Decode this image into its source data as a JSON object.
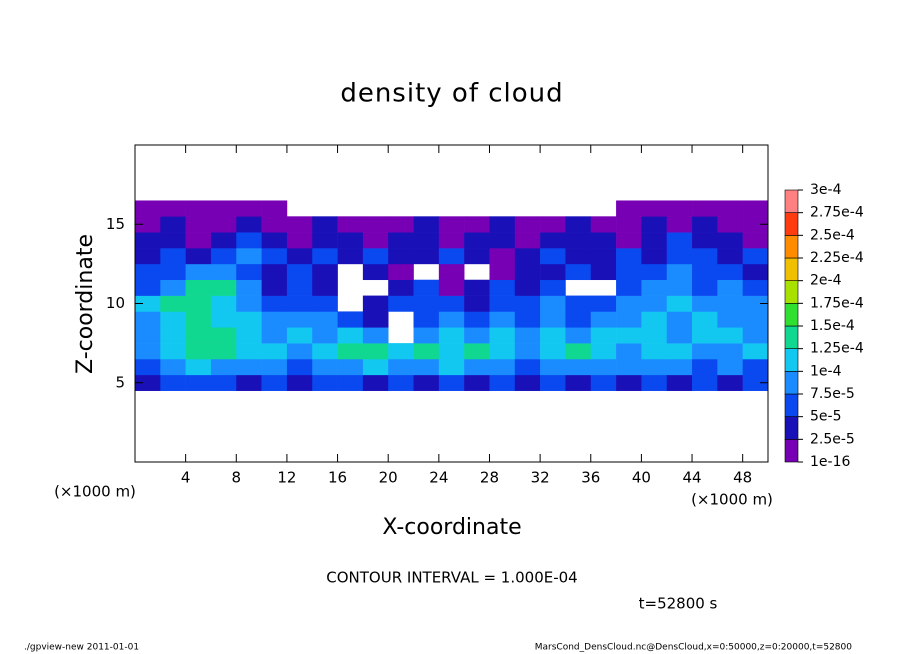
{
  "chart_data": {
    "type": "heatmap",
    "title": "density of cloud",
    "xlabel": "X-coordinate",
    "ylabel": "Z-coordinate",
    "x_unit": "(×1000 m)",
    "contour_note": "CONTOUR INTERVAL = 1.000E-04",
    "time_label": "t=52800 s",
    "footer_left": "./gpview-new  2011-01-01",
    "footer_right": "MarsCond_DensCloud.nc@DensCloud,x=0:50000,z=0:20000,t=52800",
    "xlim": [
      0,
      50
    ],
    "ylim": [
      0,
      20
    ],
    "xticks": [
      4,
      8,
      12,
      16,
      20,
      24,
      28,
      32,
      36,
      40,
      44,
      48
    ],
    "yticks": [
      5,
      10,
      15
    ],
    "levels": [
      {
        "value": 1e-16,
        "label": "1e-16"
      },
      {
        "value": 2.5e-05,
        "label": "2.5e-5"
      },
      {
        "value": 5e-05,
        "label": "5e-5"
      },
      {
        "value": 7.5e-05,
        "label": "7.5e-5"
      },
      {
        "value": 0.0001,
        "label": "1e-4"
      },
      {
        "value": 0.000125,
        "label": "1.25e-4"
      },
      {
        "value": 0.00015,
        "label": "1.5e-4"
      },
      {
        "value": 0.000175,
        "label": "1.75e-4"
      },
      {
        "value": 0.0002,
        "label": "2e-4"
      },
      {
        "value": 0.000225,
        "label": "2.25e-4"
      },
      {
        "value": 0.00025,
        "label": "2.5e-4"
      },
      {
        "value": 0.000275,
        "label": "2.75e-4"
      },
      {
        "value": 0.0003,
        "label": "3e-4"
      }
    ],
    "colors": [
      "#7800b4",
      "#1a10b8",
      "#0a48f0",
      "#1a8cff",
      "#12c8f0",
      "#10d890",
      "#30e030",
      "#a8e000",
      "#f0c000",
      "#ff8c00",
      "#ff3c10",
      "#ff8080"
    ],
    "x": [
      1,
      3,
      5,
      7,
      9,
      11,
      13,
      15,
      17,
      19,
      21,
      23,
      25,
      27,
      29,
      31,
      33,
      35,
      37,
      39,
      41,
      43,
      45,
      47,
      49
    ],
    "y": [
      5,
      6,
      7,
      8,
      9,
      10,
      11,
      12,
      13,
      14,
      15,
      16
    ],
    "z": [
      [
        3e-05,
        6e-05,
        6e-05,
        6e-05,
        3e-05,
        6e-05,
        3e-05,
        6e-05,
        6e-05,
        3e-05,
        6e-05,
        3e-05,
        6e-05,
        3e-05,
        6e-05,
        3e-05,
        6e-05,
        3e-05,
        6e-05,
        3e-05,
        6e-05,
        3e-05,
        6e-05,
        3e-05,
        6e-05
      ],
      [
        6e-05,
        9e-05,
        0.00011,
        9e-05,
        9e-05,
        9e-05,
        6e-05,
        9e-05,
        9e-05,
        0.00011,
        9e-05,
        9e-05,
        0.00011,
        9e-05,
        9e-05,
        6e-05,
        9e-05,
        9e-05,
        9e-05,
        9e-05,
        9e-05,
        9e-05,
        6e-05,
        9e-05,
        6e-05
      ],
      [
        9e-05,
        0.00011,
        0.00013,
        0.00013,
        0.00011,
        0.00011,
        9e-05,
        0.00011,
        0.00013,
        0.00013,
        0.00011,
        0.00013,
        0.00011,
        0.00013,
        0.00011,
        9e-05,
        0.00011,
        0.00013,
        0.00011,
        9e-05,
        0.00011,
        0.00011,
        9e-05,
        9e-05,
        0.00011
      ],
      [
        9e-05,
        0.00011,
        0.00013,
        0.00013,
        0.00011,
        9e-05,
        0.00011,
        9e-05,
        0.00011,
        9e-05,
        null,
        9e-05,
        0.00011,
        9e-05,
        0.00011,
        9e-05,
        0.00011,
        9e-05,
        0.00011,
        0.00011,
        0.00011,
        9e-05,
        0.00011,
        0.00011,
        9e-05
      ],
      [
        9e-05,
        0.00011,
        0.00013,
        0.00011,
        0.00011,
        9e-05,
        9e-05,
        9e-05,
        6e-05,
        3e-05,
        null,
        6e-05,
        9e-05,
        6e-05,
        9e-05,
        6e-05,
        9e-05,
        6e-05,
        9e-05,
        9e-05,
        0.00011,
        9e-05,
        0.00011,
        9e-05,
        9e-05
      ],
      [
        0.00011,
        0.00013,
        0.00013,
        0.00011,
        9e-05,
        6e-05,
        6e-05,
        6e-05,
        null,
        3e-05,
        6e-05,
        6e-05,
        6e-05,
        3e-05,
        6e-05,
        6e-05,
        9e-05,
        6e-05,
        6e-05,
        9e-05,
        9e-05,
        0.00011,
        9e-05,
        9e-05,
        9e-05
      ],
      [
        6e-05,
        9e-05,
        0.00013,
        0.00013,
        9e-05,
        3e-05,
        6e-05,
        3e-05,
        null,
        null,
        3e-05,
        6e-05,
        1e-05,
        3e-05,
        6e-05,
        3e-05,
        6e-05,
        null,
        null,
        6e-05,
        9e-05,
        9e-05,
        6e-05,
        9e-05,
        6e-05
      ],
      [
        6e-05,
        6e-05,
        9e-05,
        9e-05,
        6e-05,
        3e-05,
        6e-05,
        3e-05,
        null,
        3e-05,
        1e-05,
        null,
        1e-05,
        null,
        1e-05,
        3e-05,
        3e-05,
        6e-05,
        3e-05,
        6e-05,
        6e-05,
        9e-05,
        6e-05,
        6e-05,
        3e-05
      ],
      [
        3e-05,
        6e-05,
        3e-05,
        6e-05,
        9e-05,
        6e-05,
        3e-05,
        6e-05,
        3e-05,
        6e-05,
        3e-05,
        3e-05,
        6e-05,
        3e-05,
        1e-05,
        3e-05,
        6e-05,
        3e-05,
        3e-05,
        6e-05,
        3e-05,
        6e-05,
        6e-05,
        3e-05,
        6e-05
      ],
      [
        3e-05,
        3e-05,
        1e-05,
        3e-05,
        6e-05,
        3e-05,
        1e-05,
        3e-05,
        3e-05,
        1e-05,
        3e-05,
        3e-05,
        1e-05,
        3e-05,
        3e-05,
        1e-05,
        3e-05,
        3e-05,
        3e-05,
        1e-05,
        3e-05,
        6e-05,
        3e-05,
        3e-05,
        1e-05
      ],
      [
        1e-05,
        3e-05,
        1e-05,
        1e-05,
        3e-05,
        1e-05,
        1e-05,
        3e-05,
        1e-05,
        1e-05,
        1e-05,
        3e-05,
        1e-05,
        1e-05,
        3e-05,
        1e-05,
        1e-05,
        3e-05,
        1e-05,
        1e-05,
        3e-05,
        1e-05,
        3e-05,
        1e-05,
        1e-05
      ],
      [
        1e-05,
        1e-05,
        1e-05,
        1e-05,
        1e-05,
        1e-05,
        null,
        null,
        null,
        null,
        null,
        null,
        null,
        null,
        null,
        null,
        null,
        null,
        null,
        1e-05,
        1e-05,
        1e-05,
        1e-05,
        1e-05,
        1e-05
      ]
    ]
  }
}
